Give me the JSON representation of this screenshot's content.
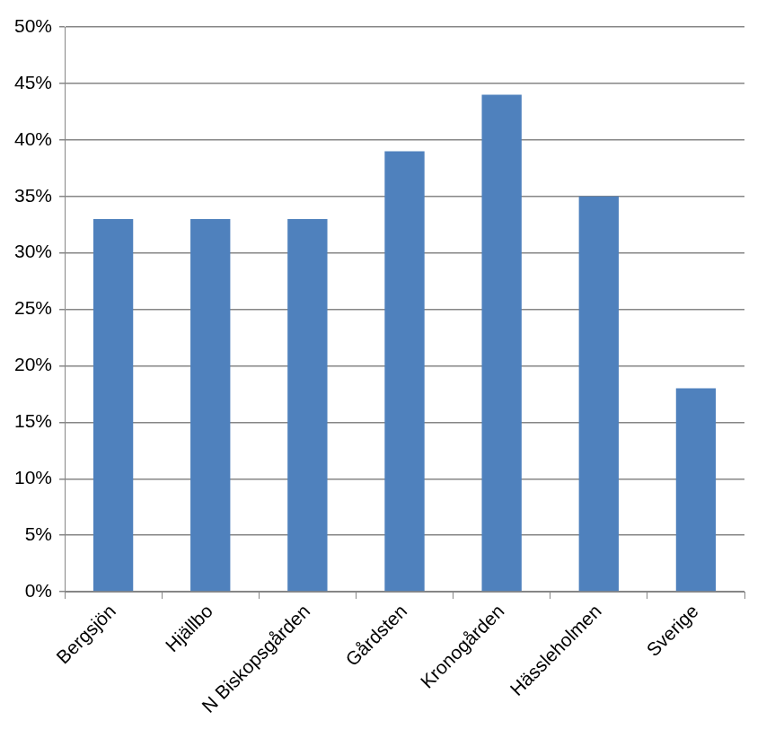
{
  "chart_data": {
    "type": "bar",
    "categories": [
      "Bergsjön",
      "Hjällbo",
      "N Biskopsgården",
      "Gårdsten",
      "Kronogården",
      "Hässleholmen",
      "Sverige"
    ],
    "values": [
      33,
      33,
      33,
      39,
      44,
      35,
      18
    ],
    "color": "#4f81bd",
    "ylim": [
      0,
      50
    ],
    "yticks": [
      {
        "value": 0,
        "label": "0%"
      },
      {
        "value": 5,
        "label": "5%"
      },
      {
        "value": 10,
        "label": "10%"
      },
      {
        "value": 15,
        "label": "15%"
      },
      {
        "value": 20,
        "label": "20%"
      },
      {
        "value": 25,
        "label": "25%"
      },
      {
        "value": 30,
        "label": "30%"
      },
      {
        "value": 35,
        "label": "35%"
      },
      {
        "value": 40,
        "label": "40%"
      },
      {
        "value": 45,
        "label": "45%"
      },
      {
        "value": 50,
        "label": "50%"
      }
    ],
    "grid": true
  }
}
